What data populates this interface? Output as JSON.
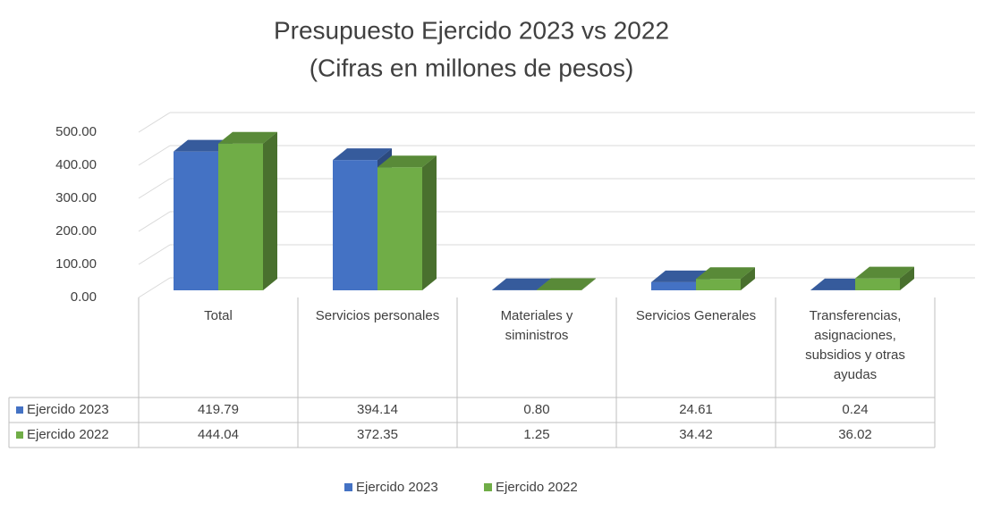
{
  "chart_data": {
    "type": "bar",
    "title": "Presupuesto Ejercido 2023 vs 2022",
    "subtitle": "(Cifras en millones de pesos)",
    "categories": [
      "Total",
      "Servicios personales",
      "Materiales y siministros",
      "Servicios Generales",
      "Transferencias, asignaciones, subsidios y otras ayudas"
    ],
    "series": [
      {
        "name": "Ejercido 2023",
        "color": "#4472c4",
        "values": [
          419.79,
          394.14,
          0.8,
          24.61,
          0.24
        ],
        "value_labels": [
          "419.79",
          "394.14",
          "0.80",
          "24.61",
          "0.24"
        ]
      },
      {
        "name": "Ejercido 2022",
        "color": "#70ad47",
        "values": [
          444.04,
          372.35,
          1.25,
          34.42,
          36.02
        ],
        "value_labels": [
          "444.04",
          "372.35",
          "1.25",
          "34.42",
          "36.02"
        ]
      }
    ],
    "ylim": [
      0,
      500
    ],
    "yticks": [
      {
        "value": 0,
        "label": "0.00"
      },
      {
        "value": 100,
        "label": "100.00"
      },
      {
        "value": 200,
        "label": "200.00"
      },
      {
        "value": 300,
        "label": "300.00"
      },
      {
        "value": 400,
        "label": "400.00"
      },
      {
        "value": 500,
        "label": "500.00"
      }
    ],
    "grid": true,
    "legend": "bottom"
  }
}
